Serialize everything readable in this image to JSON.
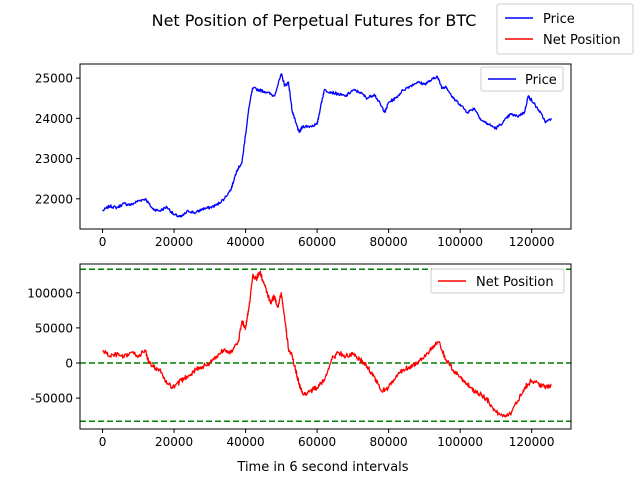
{
  "figure_title": "Net Position of Perpetual Futures for BTC",
  "figure_legend": [
    {
      "label": "Price",
      "color": "#0000ff"
    },
    {
      "label": "Net Position",
      "color": "#ff0000"
    }
  ],
  "chart_data": [
    {
      "type": "line",
      "panel": "top",
      "title": "",
      "xlabel": "",
      "ylabel": "",
      "xlim": [
        -6300,
        131000
      ],
      "ylim": [
        21250,
        25350
      ],
      "xticks": [
        0,
        20000,
        40000,
        60000,
        80000,
        100000,
        120000
      ],
      "yticks": [
        22000,
        23000,
        24000,
        25000
      ],
      "grid": false,
      "legend_position": "upper right",
      "series": [
        {
          "name": "Price",
          "color": "#0000ff",
          "x": [
            0,
            2000,
            4000,
            6000,
            8000,
            10000,
            12000,
            14000,
            16000,
            18000,
            20000,
            22000,
            24000,
            26000,
            28000,
            30000,
            32000,
            34000,
            36000,
            37500,
            39000,
            40000,
            41000,
            42000,
            44000,
            46000,
            48000,
            50000,
            51000,
            52000,
            53000,
            54000,
            55000,
            56000,
            58000,
            60000,
            61000,
            62000,
            64000,
            66000,
            68000,
            70000,
            72000,
            74000,
            76000,
            78000,
            79000,
            80000,
            82000,
            84000,
            86000,
            88000,
            90000,
            92000,
            93500,
            95000,
            96000,
            98000,
            100000,
            102000,
            104000,
            106000,
            108000,
            110000,
            112000,
            114000,
            116000,
            118000,
            119000,
            120000,
            122000,
            124000,
            125500
          ],
          "y": [
            21700,
            21820,
            21780,
            21880,
            21850,
            21950,
            22000,
            21750,
            21700,
            21800,
            21600,
            21550,
            21700,
            21650,
            21750,
            21780,
            21850,
            22000,
            22250,
            22700,
            22900,
            23600,
            24300,
            24750,
            24700,
            24650,
            24550,
            25100,
            24800,
            24900,
            24200,
            23900,
            23650,
            23800,
            23800,
            23850,
            24300,
            24700,
            24650,
            24600,
            24550,
            24700,
            24650,
            24500,
            24600,
            24300,
            24150,
            24400,
            24500,
            24700,
            24800,
            24900,
            24850,
            24950,
            25050,
            24750,
            24800,
            24500,
            24350,
            24150,
            24250,
            23950,
            23850,
            23750,
            23900,
            24100,
            24050,
            24150,
            24550,
            24450,
            24200,
            23900,
            24000
          ]
        }
      ]
    },
    {
      "type": "line",
      "panel": "bottom",
      "title": "",
      "xlabel": "Time in 6 second intervals",
      "ylabel": "",
      "xlim": [
        -6300,
        131000
      ],
      "ylim": [
        -94000,
        141000
      ],
      "xticks": [
        0,
        20000,
        40000,
        60000,
        80000,
        100000,
        120000
      ],
      "yticks": [
        -50000,
        0,
        50000,
        100000
      ],
      "grid": false,
      "legend_position": "upper right",
      "reference_lines": [
        {
          "y": 133500,
          "color": "#008000",
          "style": "dashed"
        },
        {
          "y": 0,
          "color": "#008000",
          "style": "dashed"
        },
        {
          "y": -83000,
          "color": "#008000",
          "style": "dashed"
        }
      ],
      "series": [
        {
          "name": "Net Position",
          "color": "#ff0000",
          "x": [
            0,
            2000,
            4000,
            6000,
            8000,
            10000,
            12000,
            13000,
            14000,
            16000,
            18000,
            20000,
            22000,
            24000,
            26000,
            28000,
            30000,
            32000,
            34000,
            36000,
            38000,
            39000,
            40000,
            41000,
            42000,
            43000,
            44000,
            45000,
            46000,
            47000,
            48000,
            49000,
            50000,
            51000,
            52000,
            53000,
            54000,
            55000,
            56000,
            58000,
            60000,
            62000,
            64000,
            66000,
            68000,
            70000,
            72000,
            74000,
            76000,
            78000,
            80000,
            82000,
            84000,
            86000,
            88000,
            90000,
            92000,
            94000,
            96000,
            98000,
            100000,
            102000,
            104000,
            106000,
            108000,
            110000,
            112000,
            114000,
            116000,
            118000,
            120000,
            122000,
            124000,
            125500
          ],
          "y": [
            18000,
            10000,
            12000,
            8000,
            15000,
            10000,
            18000,
            0,
            -5000,
            -10000,
            -30000,
            -35000,
            -25000,
            -18000,
            -10000,
            -5000,
            0,
            10000,
            20000,
            15000,
            30000,
            60000,
            50000,
            80000,
            125000,
            120000,
            130000,
            115000,
            100000,
            85000,
            95000,
            80000,
            100000,
            60000,
            20000,
            10000,
            -10000,
            -30000,
            -45000,
            -40000,
            -35000,
            -25000,
            5000,
            15000,
            10000,
            12000,
            5000,
            -5000,
            -20000,
            -40000,
            -35000,
            -20000,
            -10000,
            -5000,
            0,
            10000,
            20000,
            30000,
            5000,
            -10000,
            -20000,
            -30000,
            -40000,
            -45000,
            -55000,
            -70000,
            -75000,
            -72000,
            -55000,
            -35000,
            -25000,
            -30000,
            -35000,
            -30000
          ]
        }
      ]
    }
  ]
}
